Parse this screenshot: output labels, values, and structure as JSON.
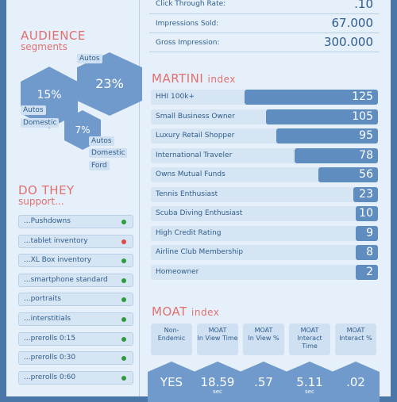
{
  "audience": {
    "title": "AUDIENCE",
    "subtitle": "segments",
    "hexes": [
      {
        "value": "15%",
        "tags": [
          "Autos",
          "Domestic"
        ]
      },
      {
        "value": "23%",
        "tags": [
          "Autos"
        ]
      },
      {
        "value": "7%",
        "tags": [
          "Autos",
          "Domestic",
          "Ford"
        ]
      }
    ]
  },
  "support": {
    "title": "DO THEY",
    "subtitle": "support...",
    "items": [
      {
        "label": "...Pushdowns",
        "status": "green"
      },
      {
        "label": "...tablet inventory",
        "status": "red"
      },
      {
        "label": "...XL Box inventory",
        "status": "green"
      },
      {
        "label": "...smartphone standard",
        "status": "green"
      },
      {
        "label": "...portraits",
        "status": "green"
      },
      {
        "label": "...interstitials",
        "status": "green"
      },
      {
        "label": "...prerolls 0:15",
        "status": "green"
      },
      {
        "label": "...prerolls 0:30",
        "status": "green"
      },
      {
        "label": "...prerolls 0:60",
        "status": "green"
      }
    ],
    "colors": {
      "green": "#2e9a3e",
      "red": "#e04848"
    }
  },
  "stats": [
    {
      "label": "Click Through Rate:",
      "value": ".10"
    },
    {
      "label": "Impressions Sold:",
      "value": "67.000"
    },
    {
      "label": "Gross Impression:",
      "value": "300.000"
    }
  ],
  "martini": {
    "title": "MARTINI",
    "subtitle": "index",
    "max": 125,
    "items": [
      {
        "label": "HHI 100k+",
        "value": 125
      },
      {
        "label": "Small Business Owner",
        "value": 105
      },
      {
        "label": "Luxury Retail Shopper",
        "value": 95
      },
      {
        "label": "International Traveler",
        "value": 78
      },
      {
        "label": "Owns Mutual Funds",
        "value": 56
      },
      {
        "label": "Tennis Enthusiast",
        "value": 23
      },
      {
        "label": "Scuba Diving Enthusiast",
        "value": 10
      },
      {
        "label": "High Credit Rating",
        "value": 9
      },
      {
        "label": "Airline Club Membership",
        "value": 8
      },
      {
        "label": "Homeowner",
        "value": 2
      }
    ]
  },
  "moat": {
    "title": "MOAT",
    "subtitle": "index",
    "columns": [
      {
        "head1": "Non-",
        "head2": "Endemic",
        "value": "YES",
        "unit": ""
      },
      {
        "head1": "MOAT",
        "head2": "In View Time",
        "value": "18.59",
        "unit": "sec"
      },
      {
        "head1": "MOAT",
        "head2": "In View %",
        "value": ".57",
        "unit": ""
      },
      {
        "head1": "MOAT",
        "head2": "Interact Time",
        "value": "5.11",
        "unit": "sec"
      },
      {
        "head1": "MOAT",
        "head2": "Interact %",
        "value": ".02",
        "unit": ""
      }
    ]
  }
}
